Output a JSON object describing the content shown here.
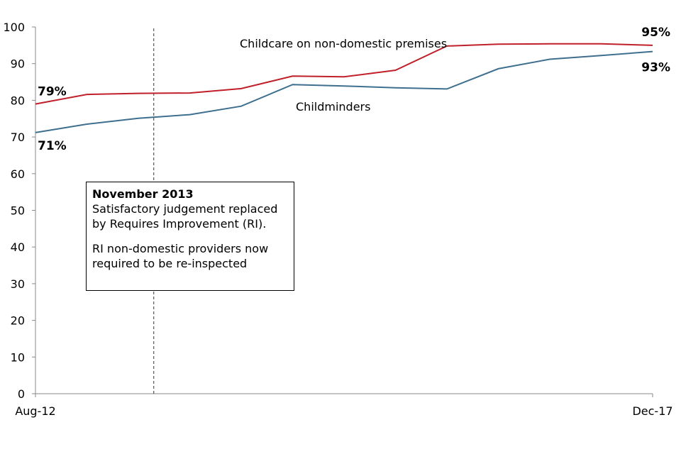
{
  "chart_data": {
    "type": "line",
    "x_tick_labels": [
      "Aug-12",
      "Dec-17"
    ],
    "ylim": [
      0,
      100
    ],
    "y_ticks": [
      0,
      10,
      20,
      30,
      40,
      50,
      60,
      70,
      80,
      90,
      100
    ],
    "grid": false,
    "series": [
      {
        "name": "Childcare on non-domestic premises",
        "color": "#c0202a",
        "values": [
          79,
          81.6,
          81.9,
          82,
          83.2,
          86.6,
          86.4,
          88.2,
          94.8,
          95.3,
          95.4,
          95.4,
          95
        ],
        "start_label": "79%",
        "end_label": "95%"
      },
      {
        "name": "Childminders",
        "color": "#3f6f8f",
        "values": [
          71.2,
          73.5,
          75.1,
          76.1,
          78.4,
          84.3,
          83.9,
          83.4,
          83.1,
          88.6,
          91.2,
          92.2,
          93.3
        ],
        "start_label": "71%",
        "end_label": "93%"
      }
    ],
    "reference_line_index": 2.3,
    "annotation": {
      "title": "November 2013",
      "line1": "Satisfactory judgement replaced",
      "line2": "by Requires Improvement (RI).",
      "line3": "RI non-domestic providers now",
      "line4": "required to be re-inspected"
    }
  }
}
